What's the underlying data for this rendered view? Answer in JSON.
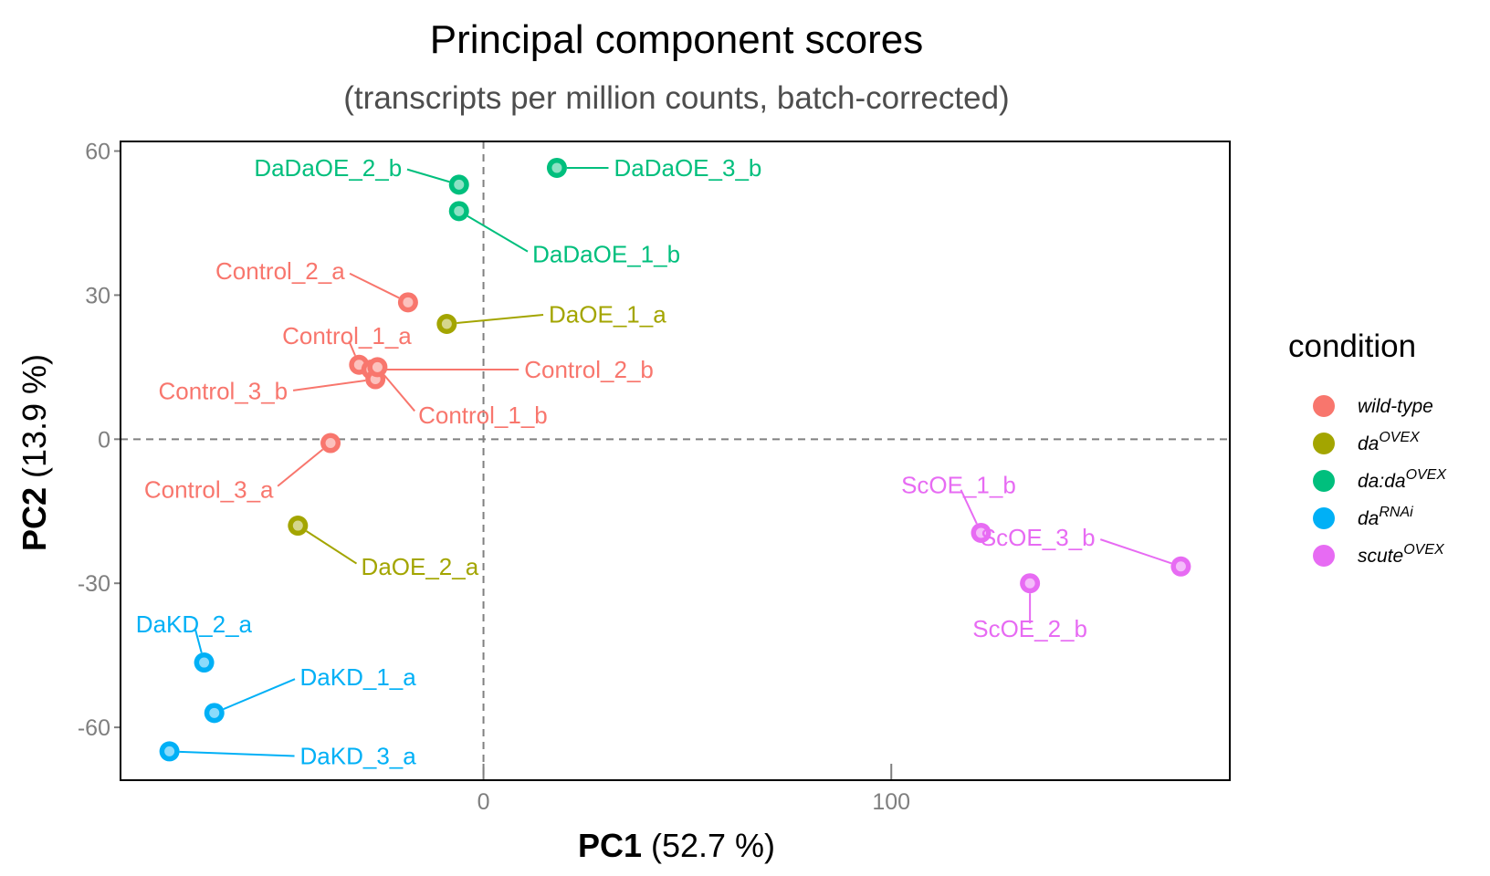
{
  "chart_data": {
    "type": "scatter",
    "title": "Principal component scores",
    "subtitle": "(transcripts per million counts, batch-corrected)",
    "xlabel": {
      "bold": "PC1",
      "rest": " (52.7 %)"
    },
    "ylabel": {
      "bold": "PC2",
      "rest": " (13.9 %)"
    },
    "xlim": [
      -89,
      183
    ],
    "ylim": [
      -71,
      62
    ],
    "xticks": [
      {
        "value": 0,
        "label": "0"
      },
      {
        "value": 100,
        "label": "100"
      }
    ],
    "yticks": [
      {
        "value": 60,
        "label": "60"
      },
      {
        "value": 30,
        "label": "30"
      },
      {
        "value": 0,
        "label": "0"
      },
      {
        "value": -30,
        "label": "-30"
      },
      {
        "value": -60,
        "label": "-60"
      }
    ],
    "reference_lines": {
      "x": 0,
      "y": 0,
      "style": "dashed"
    },
    "grid": false,
    "legend": {
      "title": "condition",
      "placement": "right",
      "entries": [
        {
          "key": "wt",
          "base": "wild-type",
          "sup": "",
          "color": "#F8766D"
        },
        {
          "key": "daovex",
          "base": "da",
          "sup": "OVEX",
          "color": "#A3A500"
        },
        {
          "key": "dadaovex",
          "base": "da:da",
          "sup": "OVEX",
          "color": "#00BF7D"
        },
        {
          "key": "darnai",
          "base": "da",
          "sup": "RNAi",
          "color": "#00B0F6"
        },
        {
          "key": "scuteovex",
          "base": "scute",
          "sup": "OVEX",
          "color": "#E76BF3"
        }
      ]
    },
    "points": [
      {
        "label": "DaDaOE_2_b",
        "condition": "dadaovex",
        "x": -6,
        "y": 53,
        "lx": -20,
        "ly": 56.5
      },
      {
        "label": "DaDaOE_3_b",
        "condition": "dadaovex",
        "x": 18,
        "y": 56.5,
        "lx": 32,
        "ly": 56.5
      },
      {
        "label": "DaDaOE_1_b",
        "condition": "dadaovex",
        "x": -6,
        "y": 47.5,
        "lx": 12,
        "ly": 38.5
      },
      {
        "label": "Control_2_a",
        "condition": "wt",
        "x": -18.5,
        "y": 28.5,
        "lx": -34,
        "ly": 35
      },
      {
        "label": "DaOE_1_a",
        "condition": "daovex",
        "x": -9,
        "y": 24,
        "lx": 16,
        "ly": 26
      },
      {
        "label": "Control_1_a",
        "condition": "wt",
        "x": -30.5,
        "y": 15.5,
        "lx": -33.5,
        "ly": 21.5
      },
      {
        "label": "Control_2_b",
        "condition": "wt",
        "x": -27.5,
        "y": 14.5,
        "lx": 10,
        "ly": 14.5
      },
      {
        "label": "Control_3_b",
        "condition": "wt",
        "x": -26.5,
        "y": 12.5,
        "lx": -48,
        "ly": 10
      },
      {
        "label": "Control_1_b",
        "condition": "wt",
        "x": -26,
        "y": 15,
        "lx": -16,
        "ly": 5
      },
      {
        "label": "Control_3_a",
        "condition": "wt",
        "x": -37.5,
        "y": -0.8,
        "lx": -51.5,
        "ly": -10.5
      },
      {
        "label": "DaOE_2_a",
        "condition": "daovex",
        "x": -45.5,
        "y": -18,
        "lx": -30,
        "ly": -26.5
      },
      {
        "label": "DaKD_2_a",
        "condition": "darnai",
        "x": -68.5,
        "y": -46.5,
        "lx": -71,
        "ly": -38.5
      },
      {
        "label": "DaKD_1_a",
        "condition": "darnai",
        "x": -66,
        "y": -57,
        "lx": -45,
        "ly": -49.5
      },
      {
        "label": "DaKD_3_a",
        "condition": "darnai",
        "x": -77,
        "y": -65,
        "lx": -45,
        "ly": -66
      },
      {
        "label": "ScOE_1_b",
        "condition": "scuteovex",
        "x": 122,
        "y": -19.5,
        "lx": 116.5,
        "ly": -9.5
      },
      {
        "label": "ScOE_3_b",
        "condition": "scuteovex",
        "x": 171,
        "y": -26.5,
        "lx": 150,
        "ly": -20.5
      },
      {
        "label": "ScOE_2_b",
        "condition": "scuteovex",
        "x": 134,
        "y": -30,
        "lx": 134,
        "ly": -39.5
      }
    ]
  }
}
